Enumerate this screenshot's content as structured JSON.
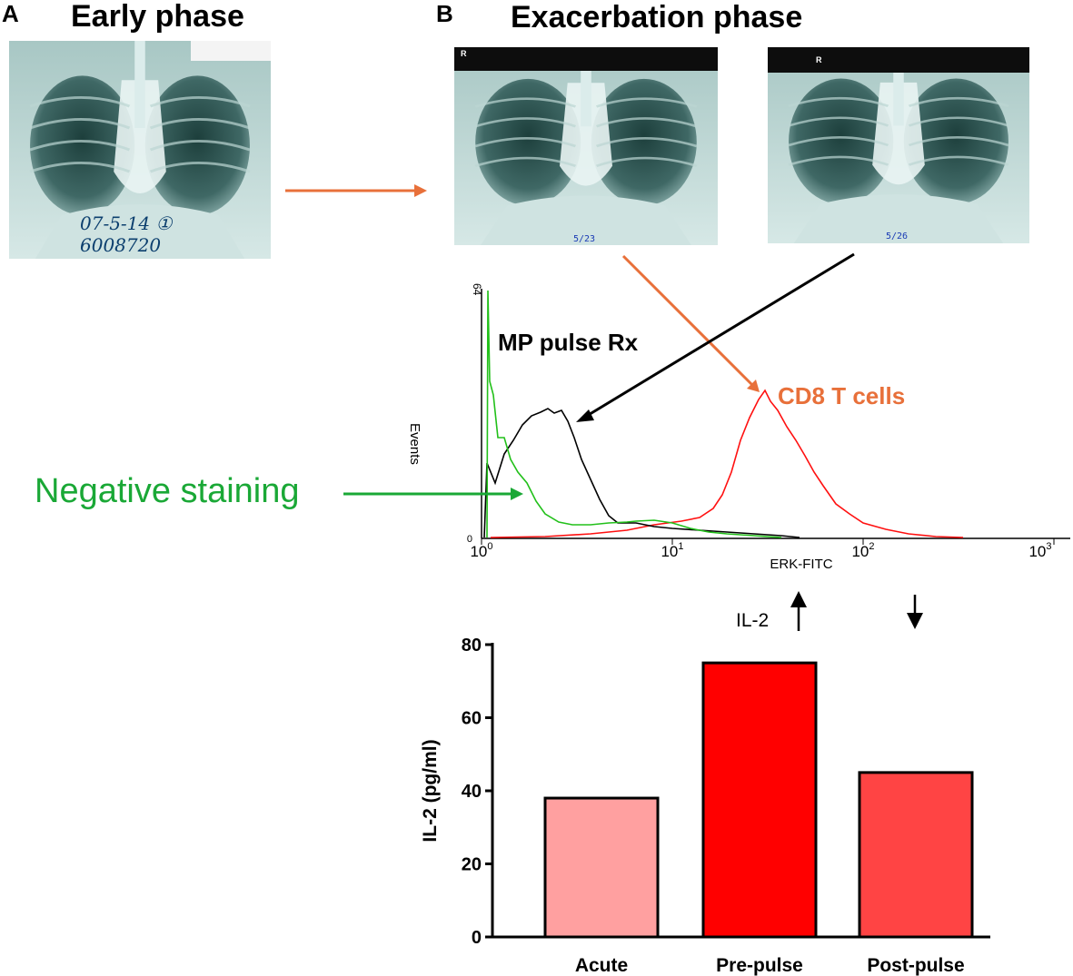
{
  "panels": {
    "a": {
      "letter": "A",
      "title": "Early phase",
      "xray_note_line1": "07-5-14 ①",
      "xray_note_line2": "6008720"
    },
    "b": {
      "letter": "B",
      "title": "Exacerbation phase",
      "xray1_marker": "R",
      "xray1_date": "5/23",
      "xray2_marker": "R",
      "xray2_date": "5/26"
    }
  },
  "flow": {
    "y_axis_label": "Events",
    "y_max_tick": "64",
    "y_zero_tick": "0",
    "x_axis_label": "ERK-FITC",
    "x_ticks": [
      {
        "base": "10",
        "exp": "0"
      },
      {
        "base": "10",
        "exp": "1"
      },
      {
        "base": "10",
        "exp": "2"
      },
      {
        "base": "10",
        "exp": "3"
      }
    ],
    "annotation_mp": "MP pulse Rx",
    "annotation_cd8": "CD8 T cells",
    "annotation_negative": "Negative staining",
    "colors": {
      "negative": "#22c01a",
      "mp": "#000000",
      "cd8": "#ff1010",
      "orange": "#e8703a",
      "green_label": "#1aa836"
    }
  },
  "il2_indicator": {
    "label": "IL-2"
  },
  "chart_data": {
    "type": "bar",
    "title": "",
    "xlabel": "",
    "ylabel": "IL-2 (pg/ml)",
    "categories": [
      "Acute",
      "Pre-pulse",
      "Post-pulse"
    ],
    "values": [
      38,
      75,
      45
    ],
    "ylim": [
      0,
      80
    ],
    "yticks": [
      0,
      20,
      40,
      60,
      80
    ],
    "bar_colors": [
      "#ffa0a0",
      "#ff0000",
      "#ff4444"
    ]
  }
}
